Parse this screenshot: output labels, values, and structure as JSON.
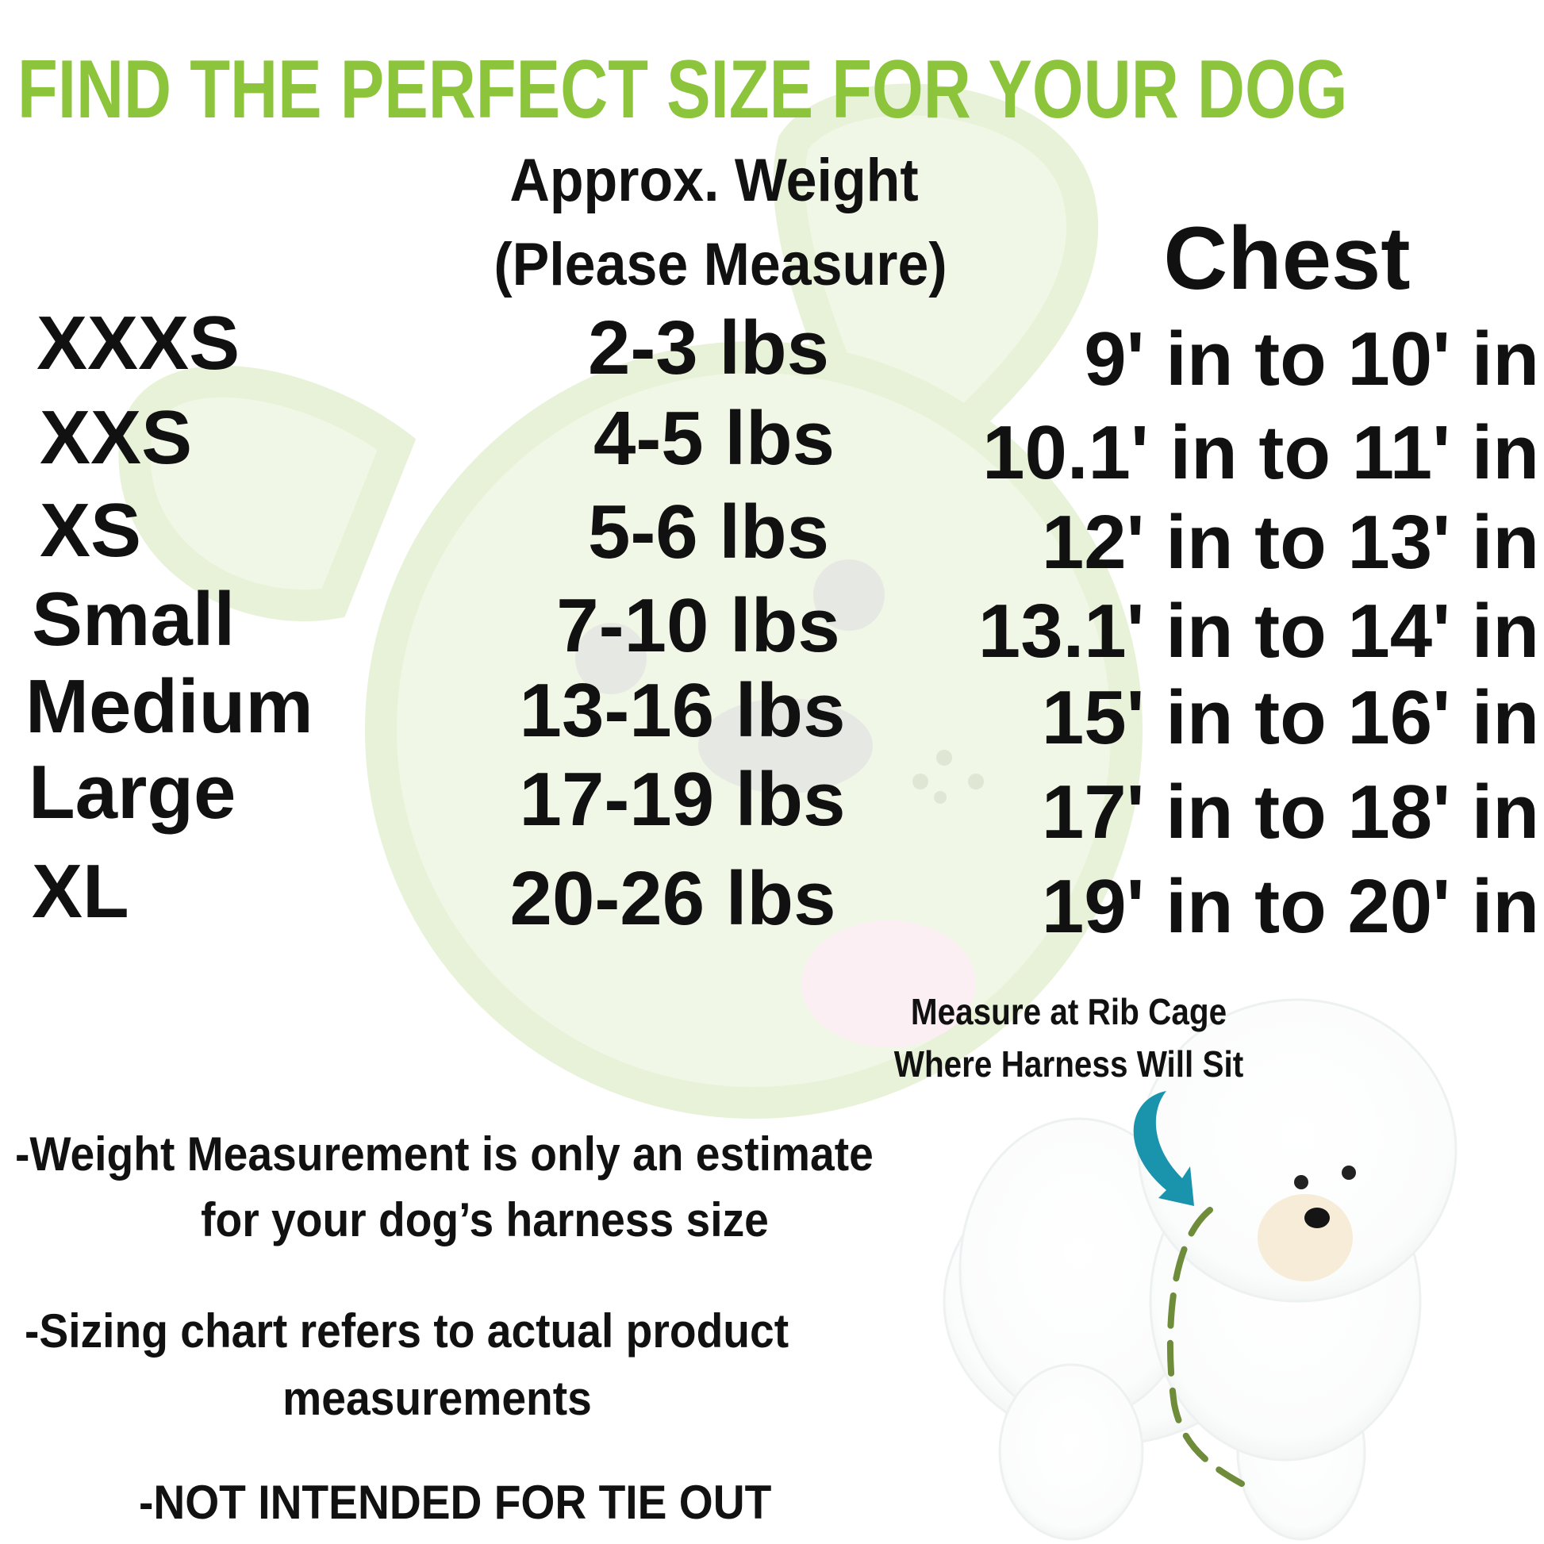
{
  "title": "FIND THE PERFECT SIZE FOR YOUR DOG",
  "headers": {
    "weight_line1": "Approx. Weight",
    "weight_line2": "(Please Measure)",
    "chest": "Chest"
  },
  "rows": [
    {
      "size": "XXXS",
      "weight": "2-3 lbs",
      "chest": "9' in to 10' in"
    },
    {
      "size": "XXS",
      "weight": "4-5 lbs",
      "chest": "10.1' in to 11' in"
    },
    {
      "size": "XS",
      "weight": "5-6 lbs",
      "chest": "12' in to 13' in"
    },
    {
      "size": "Small",
      "weight": "7-10 lbs",
      "chest": "13.1' in to 14' in"
    },
    {
      "size": "Medium",
      "weight": "13-16 lbs",
      "chest": "15' in to 16' in"
    },
    {
      "size": "Large",
      "weight": "17-19 lbs",
      "chest": "17' in to 18' in"
    },
    {
      "size": "XL",
      "weight": "20-26 lbs",
      "chest": "19' in to 20' in"
    }
  ],
  "measure_caption": {
    "line1": "Measure at Rib Cage",
    "line2": "Where Harness Will Sit"
  },
  "notes": {
    "weight_line1": "-Weight Measurement is only an estimate",
    "weight_line2": "for your dog’s harness size",
    "sizing_line1": "-Sizing chart refers to actual product",
    "sizing_line2": "measurements",
    "tie_out": "-NOT INTENDED FOR TIE OUT"
  },
  "colors": {
    "title": "#8cc43c",
    "text": "#111111",
    "arrow": "#1a93ad",
    "dashed_line": "#6e8c3a",
    "watermark": "#f0f6e4"
  },
  "icons": {
    "background": "cartoon-dog-watermark",
    "arrow": "curved-arrow-down",
    "dog_photo": "white-bichon-dog"
  }
}
